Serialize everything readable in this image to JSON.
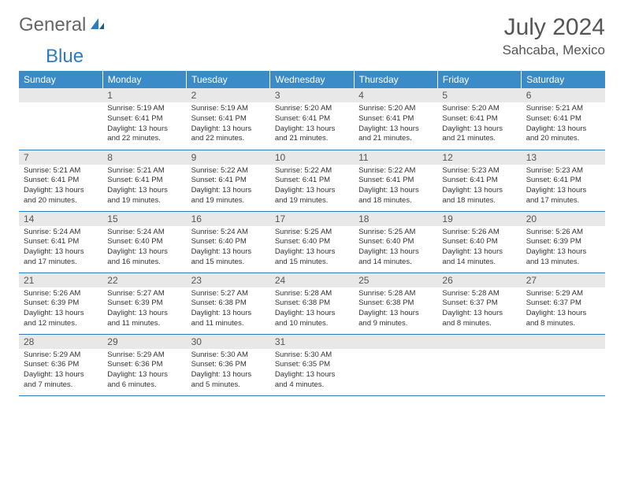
{
  "brand": {
    "part1": "General",
    "part2": "Blue"
  },
  "title": "July 2024",
  "location": "Sahcaba, Mexico",
  "colors": {
    "header_bg": "#3b8bc9",
    "header_text": "#ffffff",
    "daynum_bg": "#e8e8e8",
    "border": "#2f7bbf",
    "brand_blue": "#2f7bbf",
    "text": "#333333"
  },
  "weekdays": [
    "Sunday",
    "Monday",
    "Tuesday",
    "Wednesday",
    "Thursday",
    "Friday",
    "Saturday"
  ],
  "weeks": [
    [
      null,
      {
        "n": "1",
        "sr": "5:19 AM",
        "ss": "6:41 PM",
        "dl": "13 hours and 22 minutes."
      },
      {
        "n": "2",
        "sr": "5:19 AM",
        "ss": "6:41 PM",
        "dl": "13 hours and 22 minutes."
      },
      {
        "n": "3",
        "sr": "5:20 AM",
        "ss": "6:41 PM",
        "dl": "13 hours and 21 minutes."
      },
      {
        "n": "4",
        "sr": "5:20 AM",
        "ss": "6:41 PM",
        "dl": "13 hours and 21 minutes."
      },
      {
        "n": "5",
        "sr": "5:20 AM",
        "ss": "6:41 PM",
        "dl": "13 hours and 21 minutes."
      },
      {
        "n": "6",
        "sr": "5:21 AM",
        "ss": "6:41 PM",
        "dl": "13 hours and 20 minutes."
      }
    ],
    [
      {
        "n": "7",
        "sr": "5:21 AM",
        "ss": "6:41 PM",
        "dl": "13 hours and 20 minutes."
      },
      {
        "n": "8",
        "sr": "5:21 AM",
        "ss": "6:41 PM",
        "dl": "13 hours and 19 minutes."
      },
      {
        "n": "9",
        "sr": "5:22 AM",
        "ss": "6:41 PM",
        "dl": "13 hours and 19 minutes."
      },
      {
        "n": "10",
        "sr": "5:22 AM",
        "ss": "6:41 PM",
        "dl": "13 hours and 19 minutes."
      },
      {
        "n": "11",
        "sr": "5:22 AM",
        "ss": "6:41 PM",
        "dl": "13 hours and 18 minutes."
      },
      {
        "n": "12",
        "sr": "5:23 AM",
        "ss": "6:41 PM",
        "dl": "13 hours and 18 minutes."
      },
      {
        "n": "13",
        "sr": "5:23 AM",
        "ss": "6:41 PM",
        "dl": "13 hours and 17 minutes."
      }
    ],
    [
      {
        "n": "14",
        "sr": "5:24 AM",
        "ss": "6:41 PM",
        "dl": "13 hours and 17 minutes."
      },
      {
        "n": "15",
        "sr": "5:24 AM",
        "ss": "6:40 PM",
        "dl": "13 hours and 16 minutes."
      },
      {
        "n": "16",
        "sr": "5:24 AM",
        "ss": "6:40 PM",
        "dl": "13 hours and 15 minutes."
      },
      {
        "n": "17",
        "sr": "5:25 AM",
        "ss": "6:40 PM",
        "dl": "13 hours and 15 minutes."
      },
      {
        "n": "18",
        "sr": "5:25 AM",
        "ss": "6:40 PM",
        "dl": "13 hours and 14 minutes."
      },
      {
        "n": "19",
        "sr": "5:26 AM",
        "ss": "6:40 PM",
        "dl": "13 hours and 14 minutes."
      },
      {
        "n": "20",
        "sr": "5:26 AM",
        "ss": "6:39 PM",
        "dl": "13 hours and 13 minutes."
      }
    ],
    [
      {
        "n": "21",
        "sr": "5:26 AM",
        "ss": "6:39 PM",
        "dl": "13 hours and 12 minutes."
      },
      {
        "n": "22",
        "sr": "5:27 AM",
        "ss": "6:39 PM",
        "dl": "13 hours and 11 minutes."
      },
      {
        "n": "23",
        "sr": "5:27 AM",
        "ss": "6:38 PM",
        "dl": "13 hours and 11 minutes."
      },
      {
        "n": "24",
        "sr": "5:28 AM",
        "ss": "6:38 PM",
        "dl": "13 hours and 10 minutes."
      },
      {
        "n": "25",
        "sr": "5:28 AM",
        "ss": "6:38 PM",
        "dl": "13 hours and 9 minutes."
      },
      {
        "n": "26",
        "sr": "5:28 AM",
        "ss": "6:37 PM",
        "dl": "13 hours and 8 minutes."
      },
      {
        "n": "27",
        "sr": "5:29 AM",
        "ss": "6:37 PM",
        "dl": "13 hours and 8 minutes."
      }
    ],
    [
      {
        "n": "28",
        "sr": "5:29 AM",
        "ss": "6:36 PM",
        "dl": "13 hours and 7 minutes."
      },
      {
        "n": "29",
        "sr": "5:29 AM",
        "ss": "6:36 PM",
        "dl": "13 hours and 6 minutes."
      },
      {
        "n": "30",
        "sr": "5:30 AM",
        "ss": "6:36 PM",
        "dl": "13 hours and 5 minutes."
      },
      {
        "n": "31",
        "sr": "5:30 AM",
        "ss": "6:35 PM",
        "dl": "13 hours and 4 minutes."
      },
      null,
      null,
      null
    ]
  ],
  "labels": {
    "sunrise": "Sunrise: ",
    "sunset": "Sunset: ",
    "daylight": "Daylight: "
  }
}
